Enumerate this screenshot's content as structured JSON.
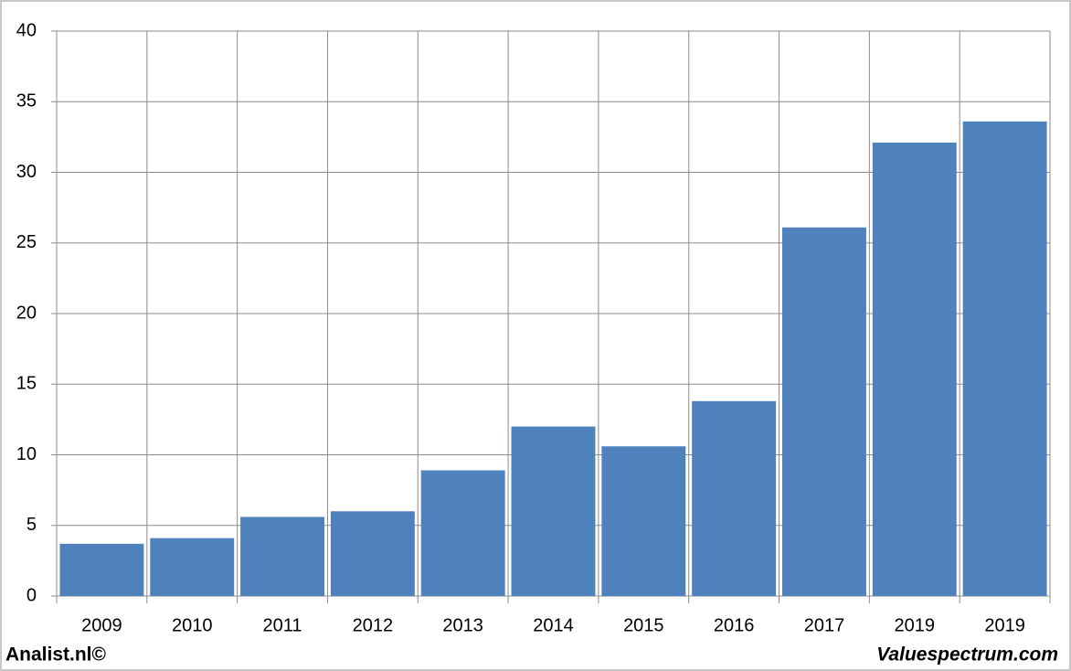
{
  "chart_data": {
    "type": "bar",
    "categories": [
      "2009",
      "2010",
      "2011",
      "2012",
      "2013",
      "2014",
      "2015",
      "2016",
      "2017",
      "2019",
      "2019"
    ],
    "values": [
      3.7,
      4.1,
      5.6,
      6.0,
      8.9,
      12.0,
      10.6,
      13.8,
      26.1,
      32.1,
      33.6
    ],
    "color": "#4f81bd",
    "ylim": [
      0,
      40
    ],
    "yticks": [
      0,
      5,
      10,
      15,
      20,
      25,
      30,
      35,
      40
    ],
    "grid": true,
    "credits": [
      "Analist.nl©",
      "Valuespectrum.com"
    ]
  }
}
